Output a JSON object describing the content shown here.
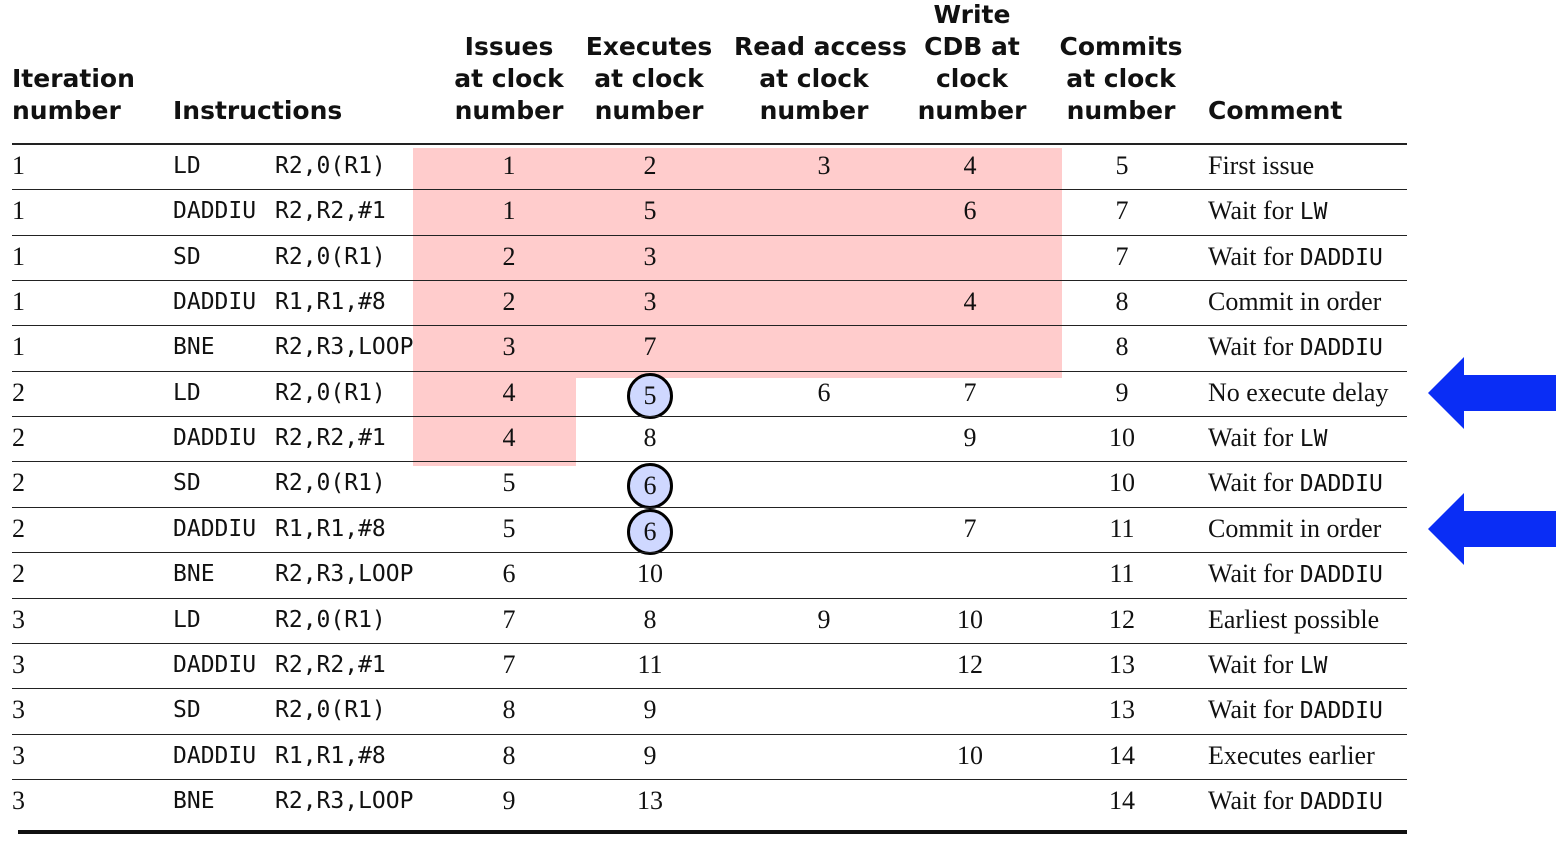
{
  "headers": {
    "iteration": [
      "Iteration",
      "number"
    ],
    "instructions": "Instructions",
    "issues": [
      "Issues",
      "at clock",
      "number"
    ],
    "executes": [
      "Executes",
      "at clock",
      "number"
    ],
    "read": [
      "Read access",
      "at clock",
      "number"
    ],
    "write": [
      "Write",
      "CDB at",
      "clock",
      "number"
    ],
    "commits": [
      "Commits",
      "at clock",
      "number"
    ],
    "comment": "Comment"
  },
  "rows": [
    {
      "iter": "1",
      "op": "LD",
      "args": "R2,0(R1)",
      "issue": "1",
      "exec": "2",
      "read": "3",
      "write": "4",
      "commit": "5",
      "comment_text": "First issue",
      "comment_code": ""
    },
    {
      "iter": "1",
      "op": "DADDIU",
      "args": "R2,R2,#1",
      "issue": "1",
      "exec": "5",
      "read": "",
      "write": "6",
      "commit": "7",
      "comment_text": "Wait for ",
      "comment_code": "LW"
    },
    {
      "iter": "1",
      "op": "SD",
      "args": "R2,0(R1)",
      "issue": "2",
      "exec": "3",
      "read": "",
      "write": "",
      "commit": "7",
      "comment_text": "Wait for ",
      "comment_code": "DADDIU"
    },
    {
      "iter": "1",
      "op": "DADDIU",
      "args": "R1,R1,#8",
      "issue": "2",
      "exec": "3",
      "read": "",
      "write": "4",
      "commit": "8",
      "comment_text": "Commit in order",
      "comment_code": ""
    },
    {
      "iter": "1",
      "op": "BNE",
      "args": "R2,R3,LOOP",
      "issue": "3",
      "exec": "7",
      "read": "",
      "write": "",
      "commit": "8",
      "comment_text": "Wait for ",
      "comment_code": "DADDIU"
    },
    {
      "iter": "2",
      "op": "LD",
      "args": "R2,0(R1)",
      "issue": "4",
      "exec": "5",
      "read": "6",
      "write": "7",
      "commit": "9",
      "comment_text": "No execute delay",
      "comment_code": ""
    },
    {
      "iter": "2",
      "op": "DADDIU",
      "args": "R2,R2,#1",
      "issue": "4",
      "exec": "8",
      "read": "",
      "write": "9",
      "commit": "10",
      "comment_text": "Wait for ",
      "comment_code": "LW"
    },
    {
      "iter": "2",
      "op": "SD",
      "args": "R2,0(R1)",
      "issue": "5",
      "exec": "6",
      "read": "",
      "write": "",
      "commit": "10",
      "comment_text": "Wait for ",
      "comment_code": "DADDIU"
    },
    {
      "iter": "2",
      "op": "DADDIU",
      "args": "R1,R1,#8",
      "issue": "5",
      "exec": "6",
      "read": "",
      "write": "7",
      "commit": "11",
      "comment_text": "Commit in order",
      "comment_code": ""
    },
    {
      "iter": "2",
      "op": "BNE",
      "args": "R2,R3,LOOP",
      "issue": "6",
      "exec": "10",
      "read": "",
      "write": "",
      "commit": "11",
      "comment_text": "Wait for ",
      "comment_code": "DADDIU"
    },
    {
      "iter": "3",
      "op": "LD",
      "args": "R2,0(R1)",
      "issue": "7",
      "exec": "8",
      "read": "9",
      "write": "10",
      "commit": "12",
      "comment_text": "Earliest possible",
      "comment_code": ""
    },
    {
      "iter": "3",
      "op": "DADDIU",
      "args": "R2,R2,#1",
      "issue": "7",
      "exec": "11",
      "read": "",
      "write": "12",
      "commit": "13",
      "comment_text": "Wait for ",
      "comment_code": "LW"
    },
    {
      "iter": "3",
      "op": "SD",
      "args": "R2,0(R1)",
      "issue": "8",
      "exec": "9",
      "read": "",
      "write": "",
      "commit": "13",
      "comment_text": "Wait for ",
      "comment_code": "DADDIU"
    },
    {
      "iter": "3",
      "op": "DADDIU",
      "args": "R1,R1,#8",
      "issue": "8",
      "exec": "9",
      "read": "",
      "write": "10",
      "commit": "14",
      "comment_text": "Executes earlier",
      "comment_code": ""
    },
    {
      "iter": "3",
      "op": "BNE",
      "args": "R2,R3,LOOP",
      "issue": "9",
      "exec": "13",
      "read": "",
      "write": "",
      "commit": "14",
      "comment_text": "Wait for ",
      "comment_code": "DADDIU"
    }
  ],
  "circled_exec_rows": [
    5,
    7,
    8
  ],
  "arrow_rows": [
    5,
    8
  ],
  "colors": {
    "highlight": "#ffcccc",
    "circle_fill": "#cfd8ff",
    "arrow": "#0a2df5"
  }
}
